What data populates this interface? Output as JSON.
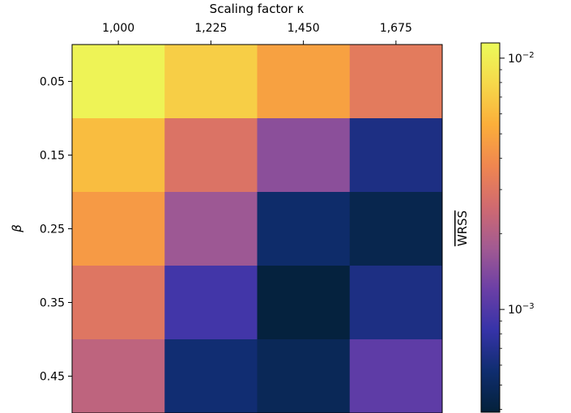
{
  "chart_data": {
    "type": "heatmap",
    "title": "",
    "xlabel": "Scaling factor κ",
    "ylabel": "β",
    "x_categories": [
      "1,000",
      "1,225",
      "1,450",
      "1,675"
    ],
    "y_categories": [
      "0.05",
      "0.15",
      "0.25",
      "0.35",
      "0.45"
    ],
    "values": [
      [
        0.0105,
        0.0072,
        0.0048,
        0.0032
      ],
      [
        0.0062,
        0.0029,
        0.0015,
        0.00065
      ],
      [
        0.0045,
        0.0017,
        0.00055,
        0.00045
      ],
      [
        0.003,
        0.0009,
        0.0004,
        0.00065
      ],
      [
        0.0022,
        0.00058,
        0.00048,
        0.0011
      ]
    ],
    "colorbar": {
      "label": "WRSS",
      "label_overline": true,
      "scale": "log",
      "range": [
        0.00039,
        0.0115
      ],
      "colormap": "plasma-like",
      "major_ticks": [
        {
          "value": 0.01,
          "base": "10",
          "exp": "−2"
        },
        {
          "value": 0.001,
          "base": "10",
          "exp": "−3"
        }
      ],
      "colors": [
        "#04213a",
        "#0f2d6f",
        "#3633a8",
        "#6b3fa6",
        "#a25a92",
        "#d06a70",
        "#f08650",
        "#fbae3a",
        "#f6d84a",
        "#ebfb5a"
      ]
    },
    "grid": false
  }
}
